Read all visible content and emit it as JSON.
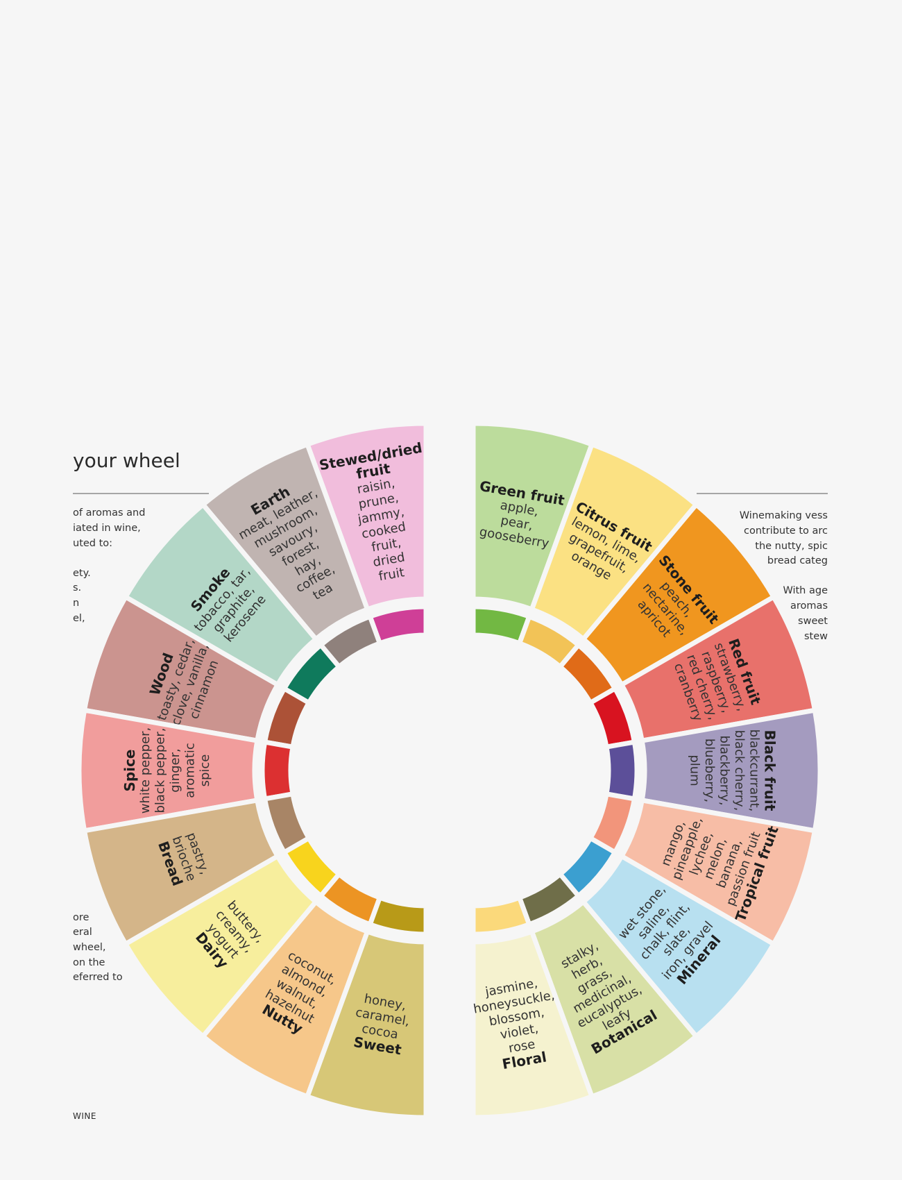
{
  "left_page": {
    "heading": "your wheel",
    "paragraph_top": [
      "of aromas and",
      "iated in wine,",
      "uted to:",
      "",
      "ety.",
      "s.",
      "n",
      "el,"
    ],
    "paragraph_bottom": [
      "ore",
      "eral",
      "wheel,",
      " on the",
      "eferred to"
    ],
    "footer": "WINE"
  },
  "right_page": {
    "paragraph": [
      "Winemaking vess",
      "contribute to arc",
      "the nutty, spic",
      "bread categ",
      "",
      "With age",
      "aromas",
      "sweet",
      "stew"
    ]
  },
  "right_segments": [
    {
      "title": [
        "Green fruit"
      ],
      "lines": [
        "apple,",
        "pear,",
        "gooseberry"
      ],
      "color": "#bcdc9c",
      "ring_color": "#72b843"
    },
    {
      "title": [
        "Citrus fruit"
      ],
      "lines": [
        "lemon, lime,",
        "grapefruit,",
        "orange"
      ],
      "color": "#fbe183",
      "ring_color": "#f2c357"
    },
    {
      "title": [
        "Stone fruit"
      ],
      "lines": [
        "peach,",
        "nectarine,",
        "apricot"
      ],
      "color": "#f0961f",
      "ring_color": "#e06b18"
    },
    {
      "title": [
        "Red fruit"
      ],
      "lines": [
        "strawberry,",
        "raspberry,",
        "red cherry,",
        "cranberry"
      ],
      "color": "#e8716b",
      "ring_color": "#d81320"
    },
    {
      "title": [
        "Black fruit"
      ],
      "lines": [
        "blackcurrant,",
        "black cherry,",
        "blackberry,",
        "blueberry,",
        "plum"
      ],
      "color": "#a49bbf",
      "ring_color": "#5c4f99"
    },
    {
      "title": [
        "Tropical fruit"
      ],
      "lines": [
        "mango,",
        "pineapple,",
        "lychee,",
        "melon,",
        "banana,",
        "passion fruit"
      ],
      "color": "#f7bda6",
      "ring_color": "#f2957b"
    },
    {
      "title": [
        "Mineral"
      ],
      "lines": [
        "wet stone,",
        "saline,",
        "chalk, flint,",
        "slate,",
        "iron, gravel"
      ],
      "color": "#b8e0f0",
      "ring_color": "#3b9fd0"
    },
    {
      "title": [
        "Botanical"
      ],
      "lines": [
        "stalky,",
        "herb,",
        "grass,",
        "medicinal,",
        "eucalyptus,",
        "leafy"
      ],
      "color": "#d8e0a6",
      "ring_color": "#6f6e49"
    },
    {
      "title": [
        "Floral"
      ],
      "lines": [
        "jasmine,",
        "honeysuckle,",
        "blossom,",
        "violet,",
        "rose"
      ],
      "color": "#f5f2cf",
      "ring_color": "#fbd97b"
    }
  ],
  "left_segments": [
    {
      "title": [
        "Stewed/dried",
        "fruit"
      ],
      "lines": [
        "raisin,",
        "prune,",
        "jammy,",
        "cooked",
        "fruit,",
        "dried",
        "fruit"
      ],
      "color": "#f1bddc",
      "ring_color": "#cf3f97"
    },
    {
      "title": [
        "Earth"
      ],
      "lines": [
        "meat, leather,",
        "mushroom,",
        "savoury,",
        "forest,",
        "hay,",
        "coffee,",
        "tea"
      ],
      "color": "#c0b4b1",
      "ring_color": "#8f817c"
    },
    {
      "title": [
        "Smoke"
      ],
      "lines": [
        "tobacco, tar,",
        "graphite,",
        "kerosene"
      ],
      "color": "#b3d7c7",
      "ring_color": "#0f7a5c"
    },
    {
      "title": [
        "Wood"
      ],
      "lines": [
        "toasty, cedar,",
        "clove, vanilla,",
        "cinnamon"
      ],
      "color": "#cb948f",
      "ring_color": "#ac5237"
    },
    {
      "title": [
        "Spice"
      ],
      "lines": [
        "white pepper,",
        "black pepper,",
        "ginger,",
        "aromatic",
        "spice"
      ],
      "color": "#f19d9c",
      "ring_color": "#dc3031"
    },
    {
      "title": [
        "Bread"
      ],
      "lines": [
        "pastry,",
        "brioche"
      ],
      "color": "#d4b589",
      "ring_color": "#a88566"
    },
    {
      "title": [
        "Dairy"
      ],
      "lines": [
        "buttery,",
        "creamy,",
        "yogurt"
      ],
      "color": "#f7ee9d",
      "ring_color": "#f8d41d"
    },
    {
      "title": [
        "Nutty"
      ],
      "lines": [
        "coconut,",
        "almond,",
        "walnut,",
        "hazelnut"
      ],
      "color": "#f6c78a",
      "ring_color": "#ec9423"
    },
    {
      "title": [
        "Sweet"
      ],
      "lines": [
        "honey,",
        "caramel,",
        "cocoa"
      ],
      "color": "#d7c777",
      "ring_color": "#b89a18"
    }
  ]
}
